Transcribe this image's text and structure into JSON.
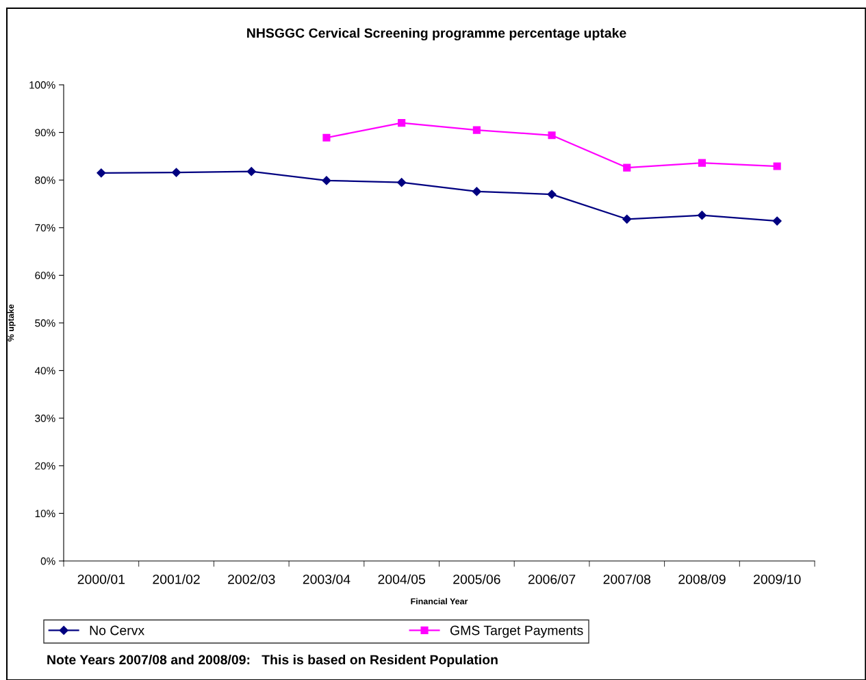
{
  "chart_data": {
    "type": "line",
    "title": "NHSGGC Cervical Screening programme percentage uptake",
    "xlabel": "Financial Year",
    "ylabel": "% uptake",
    "categories": [
      "2000/01",
      "2001/02",
      "2002/03",
      "2003/04",
      "2004/05",
      "2005/06",
      "2006/07",
      "2007/08",
      "2008/09",
      "2009/10"
    ],
    "series": [
      {
        "name": "No Cervx",
        "color": "#000080",
        "marker": "diamond",
        "values": [
          81.5,
          81.6,
          81.8,
          79.9,
          79.5,
          77.6,
          77.0,
          71.8,
          72.6,
          71.4
        ]
      },
      {
        "name": "GMS Target Payments",
        "color": "#ff00ff",
        "marker": "square",
        "values": [
          null,
          null,
          null,
          88.9,
          92.0,
          90.5,
          89.4,
          82.6,
          83.6,
          82.9
        ]
      }
    ],
    "ylim": [
      0,
      100
    ],
    "yticks": [
      {
        "value": 0,
        "label": "0%"
      },
      {
        "value": 10,
        "label": "10%"
      },
      {
        "value": 20,
        "label": "20%"
      },
      {
        "value": 30,
        "label": "30%"
      },
      {
        "value": 40,
        "label": "40%"
      },
      {
        "value": 50,
        "label": "50%"
      },
      {
        "value": 60,
        "label": "60%"
      },
      {
        "value": 70,
        "label": "70%"
      },
      {
        "value": 80,
        "label": "80%"
      },
      {
        "value": 90,
        "label": "90%"
      },
      {
        "value": 100,
        "label": "100%"
      }
    ],
    "grid": false,
    "legend": "bottom",
    "line_style": "solid",
    "annotations": [
      "Note Years 2007/08 and 2008/09:   This is based on Resident Population"
    ]
  }
}
